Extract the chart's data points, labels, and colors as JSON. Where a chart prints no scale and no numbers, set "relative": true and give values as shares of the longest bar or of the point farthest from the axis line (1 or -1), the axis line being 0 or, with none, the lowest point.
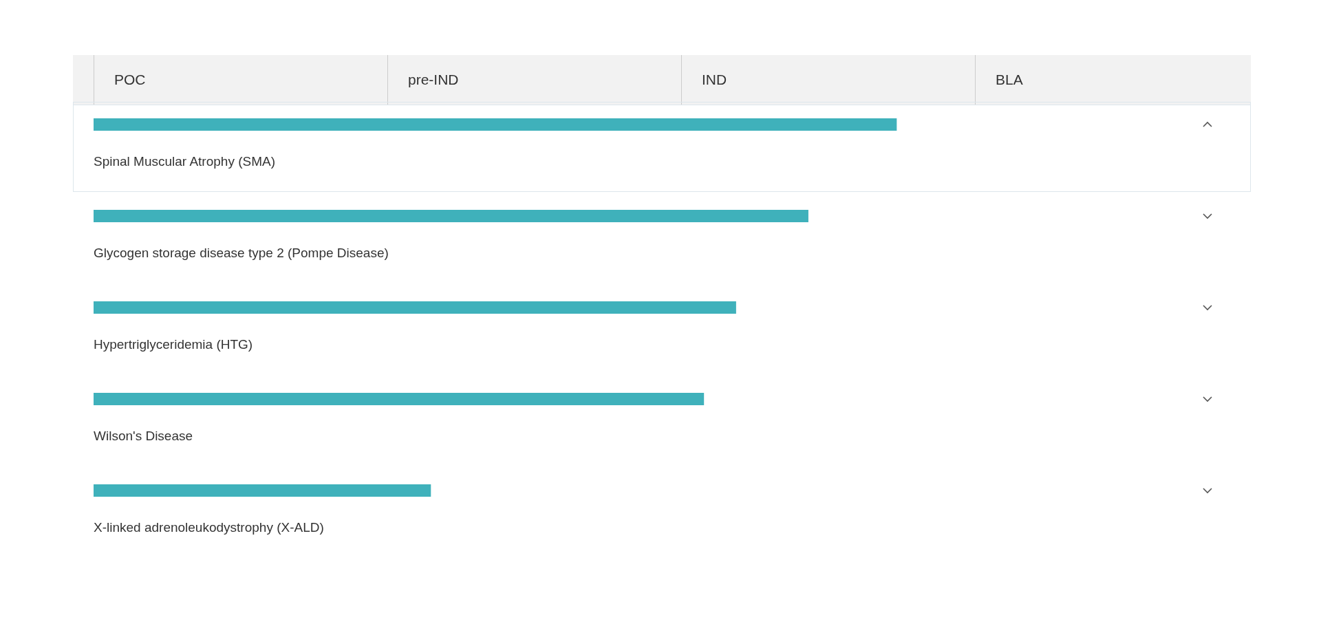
{
  "chart_data": {
    "type": "bar",
    "orientation": "horizontal",
    "relative": true,
    "categories": [
      "Spinal Muscular Atrophy (SMA)",
      "Glycogen storage disease type 2 (Pompe Disease)",
      "Hypertriglyceridemia (HTG)",
      "Wilson's Disease",
      "X-linked adrenoleukodystrophy (X-ALD)"
    ],
    "values": [
      1,
      0.89,
      0.8,
      0.76,
      0.42
    ],
    "color": "#3fb1bb",
    "annotations": [
      "POC",
      "pre-IND",
      "IND",
      "BLA"
    ],
    "grid": false,
    "legend": false
  }
}
